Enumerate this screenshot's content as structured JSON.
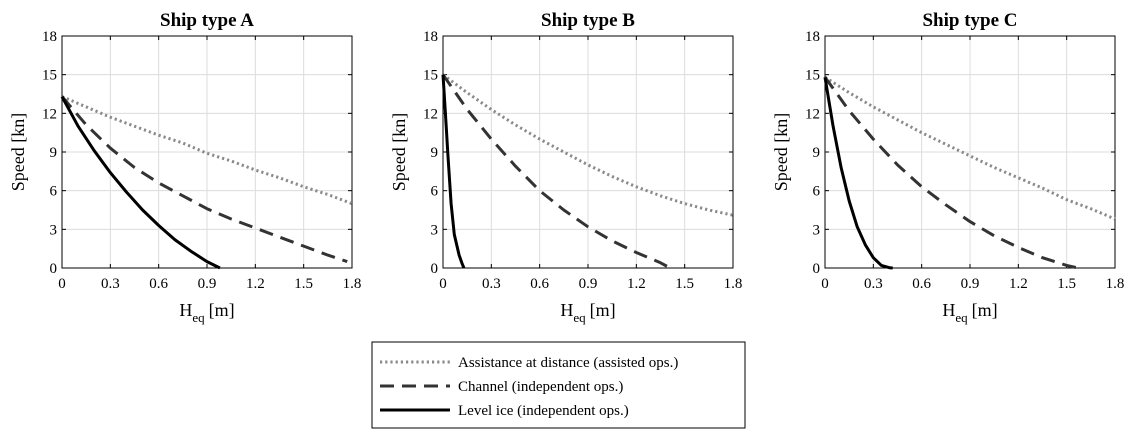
{
  "chart_data": [
    {
      "type": "line",
      "title": "Ship type A",
      "xlabel": "H",
      "xlabel_sub": "eq",
      "xlabel_unit": "[m]",
      "ylabel": "Speed [kn]",
      "xlim": [
        0,
        1.8
      ],
      "ylim": [
        0,
        18
      ],
      "xticks": [
        0,
        0.3,
        0.6,
        0.9,
        1.2,
        1.5,
        1.8
      ],
      "xtick_labels": [
        "0",
        "0.3",
        "0.6",
        "0.9",
        "1.2",
        "1.5",
        "1.8"
      ],
      "yticks": [
        0,
        3,
        6,
        9,
        12,
        15,
        18
      ],
      "ytick_labels": [
        "0",
        "3",
        "6",
        "9",
        "12",
        "15",
        "18"
      ],
      "grid": true,
      "series": [
        {
          "name": "Assistance at distance (assisted ops.)",
          "style": "dotted",
          "x": [
            0,
            0.15,
            0.3,
            0.45,
            0.6,
            0.75,
            0.9,
            1.05,
            1.2,
            1.35,
            1.5,
            1.65,
            1.8
          ],
          "y": [
            13.3,
            12.5,
            11.7,
            11.0,
            10.3,
            9.7,
            8.9,
            8.3,
            7.6,
            7.0,
            6.3,
            5.7,
            5.0
          ]
        },
        {
          "name": "Channel (independent ops.)",
          "style": "dashed",
          "x": [
            0,
            0.15,
            0.3,
            0.45,
            0.6,
            0.75,
            0.9,
            1.05,
            1.2,
            1.35,
            1.5,
            1.65,
            1.77
          ],
          "y": [
            13.3,
            11.1,
            9.3,
            7.8,
            6.6,
            5.6,
            4.6,
            3.8,
            3.1,
            2.4,
            1.7,
            1.0,
            0.5
          ]
        },
        {
          "name": "Level ice (independent ops.)",
          "style": "solid",
          "x": [
            0,
            0.1,
            0.2,
            0.3,
            0.4,
            0.5,
            0.6,
            0.7,
            0.8,
            0.9,
            0.98
          ],
          "y": [
            13.3,
            11.0,
            9.1,
            7.4,
            5.9,
            4.5,
            3.3,
            2.2,
            1.3,
            0.5,
            0
          ]
        }
      ]
    },
    {
      "type": "line",
      "title": "Ship type B",
      "xlabel": "H",
      "xlabel_sub": "eq",
      "xlabel_unit": "[m]",
      "ylabel": "Speed [kn]",
      "xlim": [
        0,
        1.8
      ],
      "ylim": [
        0,
        18
      ],
      "xticks": [
        0,
        0.3,
        0.6,
        0.9,
        1.2,
        1.5,
        1.8
      ],
      "xtick_labels": [
        "0",
        "0.3",
        "0.6",
        "0.9",
        "1.2",
        "1.5",
        "1.8"
      ],
      "yticks": [
        0,
        3,
        6,
        9,
        12,
        15,
        18
      ],
      "ytick_labels": [
        "0",
        "3",
        "6",
        "9",
        "12",
        "15",
        "18"
      ],
      "grid": true,
      "series": [
        {
          "name": "Assistance at distance (assisted ops.)",
          "style": "dotted",
          "x": [
            0,
            0.15,
            0.3,
            0.45,
            0.6,
            0.75,
            0.9,
            1.05,
            1.2,
            1.35,
            1.5,
            1.65,
            1.8
          ],
          "y": [
            15.0,
            13.6,
            12.3,
            11.1,
            10.0,
            9.0,
            8.0,
            7.1,
            6.3,
            5.6,
            5.0,
            4.5,
            4.1
          ]
        },
        {
          "name": "Channel (independent ops.)",
          "style": "dashed",
          "x": [
            0,
            0.15,
            0.3,
            0.45,
            0.6,
            0.75,
            0.9,
            1.05,
            1.2,
            1.35,
            1.41
          ],
          "y": [
            15.0,
            12.3,
            10.0,
            7.9,
            6.0,
            4.5,
            3.2,
            2.1,
            1.2,
            0.4,
            0
          ]
        },
        {
          "name": "Level ice (independent ops.)",
          "style": "solid",
          "x": [
            0,
            0.01,
            0.02,
            0.03,
            0.05,
            0.07,
            0.1,
            0.12,
            0.13
          ],
          "y": [
            15.0,
            13.0,
            11.0,
            8.9,
            5.0,
            2.6,
            1.0,
            0.3,
            0
          ]
        }
      ]
    },
    {
      "type": "line",
      "title": "Ship type C",
      "xlabel": "H",
      "xlabel_sub": "eq",
      "xlabel_unit": "[m]",
      "ylabel": "Speed [kn]",
      "xlim": [
        0,
        1.8
      ],
      "ylim": [
        0,
        18
      ],
      "xticks": [
        0,
        0.3,
        0.6,
        0.9,
        1.2,
        1.5,
        1.8
      ],
      "xtick_labels": [
        "0",
        "0.3",
        "0.6",
        "0.9",
        "1.2",
        "1.5",
        "1.8"
      ],
      "yticks": [
        0,
        3,
        6,
        9,
        12,
        15,
        18
      ],
      "ytick_labels": [
        "0",
        "3",
        "6",
        "9",
        "12",
        "15",
        "18"
      ],
      "grid": true,
      "series": [
        {
          "name": "Assistance at distance (assisted ops.)",
          "style": "dotted",
          "x": [
            0,
            0.15,
            0.3,
            0.45,
            0.6,
            0.75,
            0.9,
            1.05,
            1.2,
            1.35,
            1.5,
            1.65,
            1.8
          ],
          "y": [
            14.8,
            13.6,
            12.5,
            11.5,
            10.5,
            9.6,
            8.7,
            7.8,
            7.0,
            6.2,
            5.3,
            4.6,
            3.8
          ]
        },
        {
          "name": "Channel (independent ops.)",
          "style": "dashed",
          "x": [
            0,
            0.15,
            0.3,
            0.45,
            0.6,
            0.75,
            0.9,
            1.05,
            1.2,
            1.35,
            1.5,
            1.57
          ],
          "y": [
            14.8,
            12.2,
            10.0,
            8.0,
            6.3,
            4.9,
            3.6,
            2.5,
            1.6,
            0.8,
            0.2,
            0
          ]
        },
        {
          "name": "Level ice (independent ops.)",
          "style": "solid",
          "x": [
            0,
            0.05,
            0.1,
            0.15,
            0.2,
            0.25,
            0.3,
            0.35,
            0.4,
            0.42
          ],
          "y": [
            14.8,
            11.0,
            7.8,
            5.2,
            3.2,
            1.8,
            0.8,
            0.2,
            0.02,
            0
          ]
        }
      ]
    }
  ],
  "legend": {
    "placement": "bottom-center",
    "entries": [
      {
        "label": "Assistance at distance (assisted ops.)",
        "style": "dotted"
      },
      {
        "label": "Channel (independent ops.)",
        "style": "dashed"
      },
      {
        "label": "Level ice (independent ops.)",
        "style": "solid"
      }
    ]
  },
  "colors": {
    "dotted": "#8a8a8a",
    "dashed": "#333333",
    "solid": "#000000",
    "grid": "#dcdcdc",
    "axis": "#000000"
  }
}
